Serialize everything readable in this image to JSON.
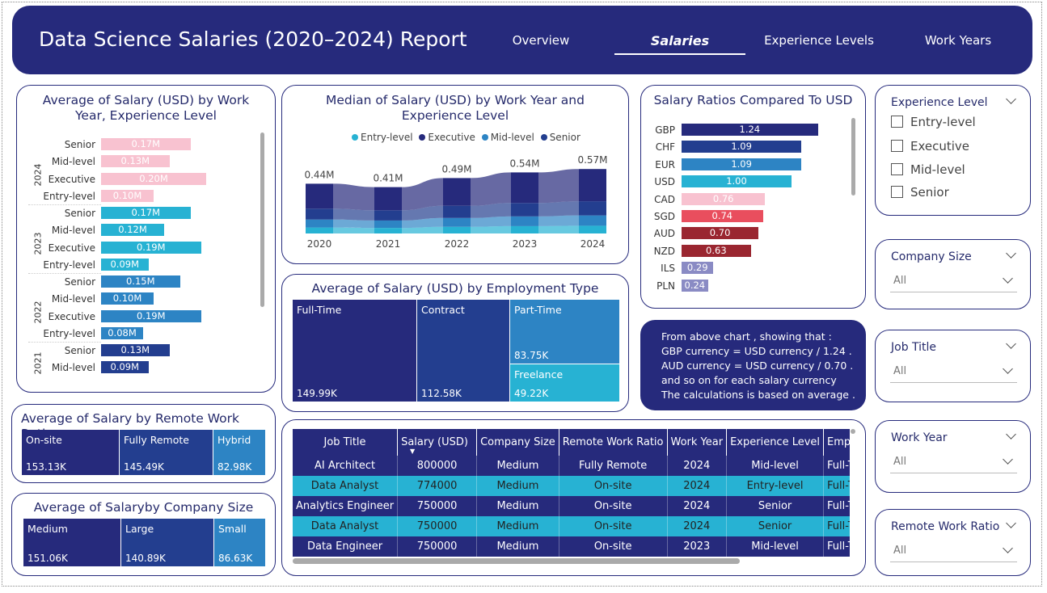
{
  "header": {
    "title": "Data Science Salaries (2020–2024) Report",
    "tabs": [
      "Overview",
      "Salaries",
      "Experience Levels",
      "Work Years"
    ]
  },
  "colors": {
    "navy": "#262a7c",
    "blue": "#233e8f",
    "mid_blue": "#2d84c4",
    "cyan": "#27b2d3",
    "pink": "#f8c2d0",
    "red": "#e94e5e",
    "dark_red": "#9a2630",
    "lavender": "#8a8bc4"
  },
  "chart1": {
    "title": "Average of Salary (USD) by Work Year, Experience Level",
    "chart_data": {
      "type": "bar",
      "groups": [
        {
          "year": "2024",
          "rows": [
            {
              "label": "Senior",
              "value": 0.17,
              "text": "0.17M"
            },
            {
              "label": "Mid-level",
              "value": 0.13,
              "text": "0.13M"
            },
            {
              "label": "Executive",
              "value": 0.2,
              "text": "0.20M"
            },
            {
              "label": "Entry-level",
              "value": 0.1,
              "text": "0.10M"
            }
          ]
        },
        {
          "year": "2023",
          "rows": [
            {
              "label": "Senior",
              "value": 0.17,
              "text": "0.17M"
            },
            {
              "label": "Mid-level",
              "value": 0.12,
              "text": "0.12M"
            },
            {
              "label": "Executive",
              "value": 0.19,
              "text": "0.19M"
            },
            {
              "label": "Entry-level",
              "value": 0.09,
              "text": "0.09M"
            }
          ]
        },
        {
          "year": "2022",
          "rows": [
            {
              "label": "Senior",
              "value": 0.15,
              "text": "0.15M"
            },
            {
              "label": "Mid-level",
              "value": 0.1,
              "text": "0.10M"
            },
            {
              "label": "Executive",
              "value": 0.19,
              "text": "0.19M"
            },
            {
              "label": "Entry-level",
              "value": 0.08,
              "text": "0.08M"
            }
          ]
        },
        {
          "year": "2021",
          "rows": [
            {
              "label": "Senior",
              "value": 0.13,
              "text": "0.13M"
            },
            {
              "label": "Mid-level",
              "value": 0.09,
              "text": "0.09M"
            }
          ]
        }
      ]
    }
  },
  "chart2": {
    "title": "Median of Salary (USD) by Work Year and Experience Level",
    "legend": [
      "Entry-level",
      "Executive",
      "Mid-level",
      "Senior"
    ],
    "chart_data": {
      "type": "area",
      "x": [
        "2020",
        "2021",
        "2022",
        "2023",
        "2024"
      ],
      "totals": [
        0.44,
        0.41,
        0.49,
        0.54,
        0.57
      ],
      "total_labels": [
        "0.44M",
        "0.41M",
        "0.49M",
        "0.54M",
        "0.57M"
      ],
      "series": [
        {
          "name": "Entry-level"
        },
        {
          "name": "Executive"
        },
        {
          "name": "Mid-level"
        },
        {
          "name": "Senior"
        }
      ]
    }
  },
  "chart3": {
    "title": "Salary Ratios Compared To USD",
    "chart_data": {
      "type": "bar",
      "categories": [
        "GBP",
        "CHF",
        "EUR",
        "USD",
        "CAD",
        "SGD",
        "AUD",
        "NZD",
        "ILS",
        "PLN"
      ],
      "values": [
        1.24,
        1.09,
        1.09,
        1.0,
        0.76,
        0.74,
        0.7,
        0.63,
        0.29,
        0.24
      ],
      "labels": [
        "1.24",
        "1.09",
        "1.09",
        "1.00",
        "0.76",
        "0.74",
        "0.70",
        "0.63",
        "0.29",
        "0.24"
      ],
      "colors": [
        "navy",
        "blue",
        "mid_blue",
        "cyan",
        "pink",
        "red",
        "dark_red",
        "dark_red",
        "lavender",
        "lavender"
      ]
    }
  },
  "chart4": {
    "title": "Average of Salary (USD) by Employment Type",
    "chart_data": {
      "type": "treemap",
      "items": [
        {
          "label": "Full-Time",
          "value": "149.99K"
        },
        {
          "label": "Contract",
          "value": "112.58K"
        },
        {
          "label": "Part-Time",
          "value": "83.75K"
        },
        {
          "label": "Freelance",
          "value": "49.22K"
        }
      ]
    }
  },
  "chart5": {
    "title": "Average of Salary by Remote Work Ratio",
    "chart_data": {
      "type": "treemap",
      "items": [
        {
          "label": "On-site",
          "value": "153.13K"
        },
        {
          "label": "Fully Remote",
          "value": "145.49K"
        },
        {
          "label": "Hybrid",
          "value": "82.98K"
        }
      ]
    }
  },
  "chart6": {
    "title": "Average of Salaryby Company Size",
    "chart_data": {
      "type": "treemap",
      "items": [
        {
          "label": "Medium",
          "value": "151.06K"
        },
        {
          "label": "Large",
          "value": "140.89K"
        },
        {
          "label": "Small",
          "value": "86.63K"
        }
      ]
    }
  },
  "note": {
    "lines": [
      "From above chart , showing that :",
      "GBP currency  = USD currency / 1.24 .",
      "AUD currency  = USD currency / 0.70 .",
      "and so on for each salary currency",
      "The calculations is based on average ."
    ]
  },
  "table": {
    "columns": [
      "Job Title",
      "Salary (USD)",
      "Company Size",
      "Remote Work Ratio",
      "Work Year",
      "Experience Level",
      "Employment Type"
    ],
    "rows": [
      [
        "AI Architect",
        "800000",
        "Medium",
        "Fully Remote",
        "2024",
        "Mid-level",
        "Full-Time"
      ],
      [
        "Data Analyst",
        "774000",
        "Medium",
        "On-site",
        "2024",
        "Entry-level",
        "Full-Time"
      ],
      [
        "Analytics Engineer",
        "750000",
        "Medium",
        "On-site",
        "2024",
        "Senior",
        "Full-Time"
      ],
      [
        "Data Analyst",
        "750000",
        "Medium",
        "On-site",
        "2024",
        "Senior",
        "Full-Time"
      ],
      [
        "Data Engineer",
        "750000",
        "Medium",
        "On-site",
        "2023",
        "Mid-level",
        "Full-Time"
      ]
    ]
  },
  "slicers": {
    "experience": {
      "title": "Experience Level",
      "options": [
        "Entry-level",
        "Executive",
        "Mid-level",
        "Senior"
      ]
    },
    "company_size": {
      "title": "Company Size",
      "value": "All"
    },
    "job_title": {
      "title": "Job Title",
      "value": "All"
    },
    "work_year": {
      "title": "Work Year",
      "value": "All"
    },
    "remote_ratio": {
      "title": "Remote Work Ratio",
      "value": "All"
    }
  }
}
